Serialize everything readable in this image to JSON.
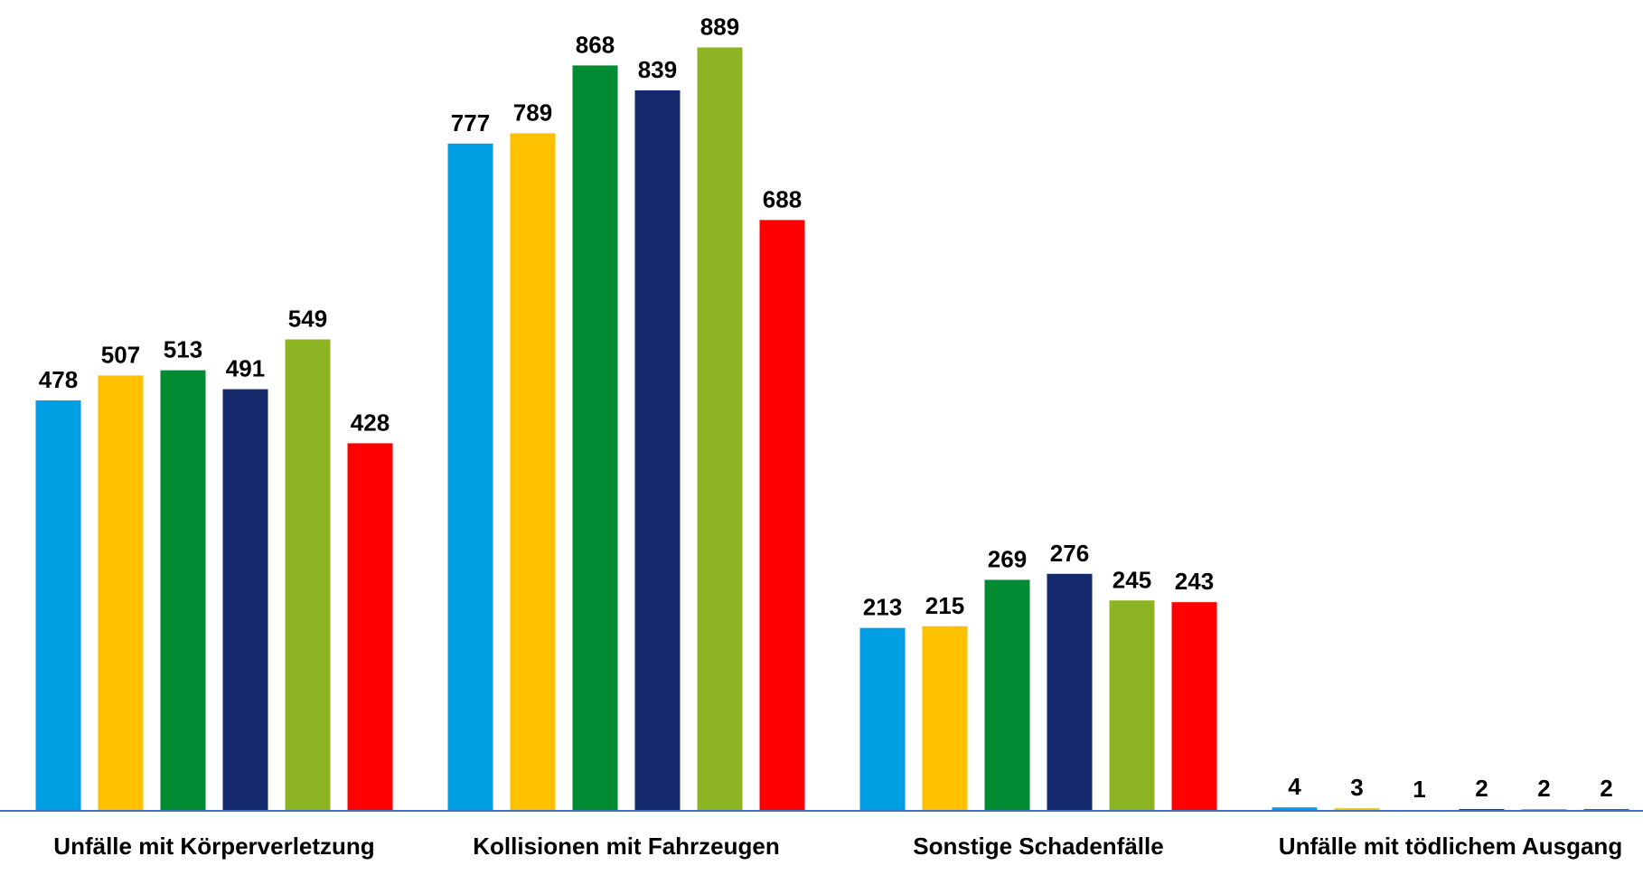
{
  "chart_data": {
    "type": "bar",
    "categories": [
      "Unfälle mit Körperverletzung",
      "Kollisionen mit Fahrzeugen",
      "Sonstige Schadenfälle",
      "Unfälle mit tödlichem Ausgang"
    ],
    "series": [
      {
        "color": "#009fe3",
        "values": [
          478,
          777,
          213,
          4
        ]
      },
      {
        "color": "#ffc000",
        "values": [
          507,
          789,
          215,
          3
        ]
      },
      {
        "color": "#008a32",
        "values": [
          513,
          868,
          269,
          1
        ]
      },
      {
        "color": "#13296b",
        "values": [
          491,
          839,
          276,
          2
        ]
      },
      {
        "color": "#8cb423",
        "values": [
          549,
          889,
          245,
          2
        ]
      },
      {
        "color": "#ff0000",
        "values": [
          428,
          688,
          243,
          2
        ]
      }
    ],
    "ylim": [
      0,
      900
    ]
  }
}
